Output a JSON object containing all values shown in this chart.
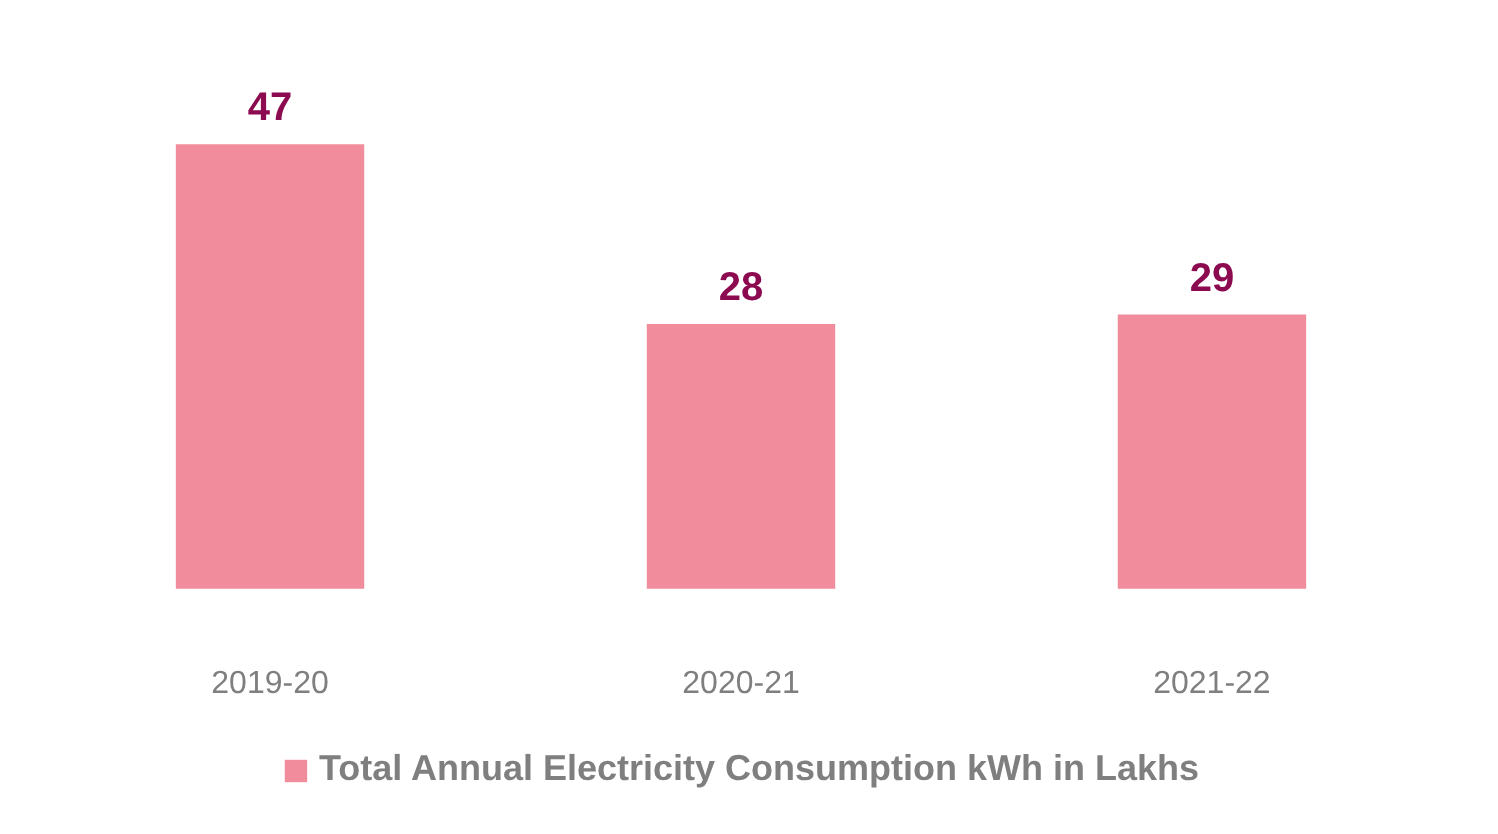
{
  "chart_data": {
    "type": "bar",
    "categories": [
      "2019-20",
      "2020-21",
      "2021-22"
    ],
    "series": [
      {
        "name": "Total Annual Electricity Consumption kWh in Lakhs",
        "color": "#f08c9c",
        "values": [
          47,
          28,
          29
        ]
      }
    ],
    "data_labels": true,
    "legend": "bottom"
  }
}
